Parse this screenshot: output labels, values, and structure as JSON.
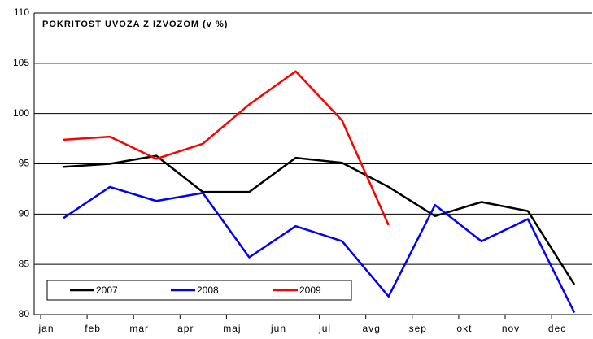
{
  "chart_data": {
    "type": "line",
    "title": "POKRITOST UVOZA Z IZVOZOM (v %)",
    "categories": [
      "jan",
      "feb",
      "mar",
      "apr",
      "maj",
      "jun",
      "jul",
      "avg",
      "sep",
      "okt",
      "nov",
      "dec"
    ],
    "series": [
      {
        "name": "2007",
        "color": "#000000",
        "values": [
          94.7,
          95.0,
          95.8,
          92.2,
          92.2,
          95.6,
          95.1,
          92.7,
          89.8,
          91.2,
          90.3,
          83.0
        ]
      },
      {
        "name": "2008",
        "color": "#0000ff",
        "values": [
          89.6,
          92.7,
          91.3,
          92.1,
          85.7,
          88.8,
          87.3,
          81.8,
          90.9,
          87.3,
          89.5,
          80.2
        ]
      },
      {
        "name": "2009",
        "color": "#ff0000",
        "values": [
          97.4,
          97.7,
          95.5,
          97.0,
          100.9,
          104.2,
          99.3,
          88.9,
          null,
          null,
          null,
          null
        ]
      }
    ],
    "ylim": [
      80,
      110
    ],
    "yticks": [
      80,
      85,
      90,
      95,
      100,
      105,
      110
    ],
    "grid": true
  }
}
